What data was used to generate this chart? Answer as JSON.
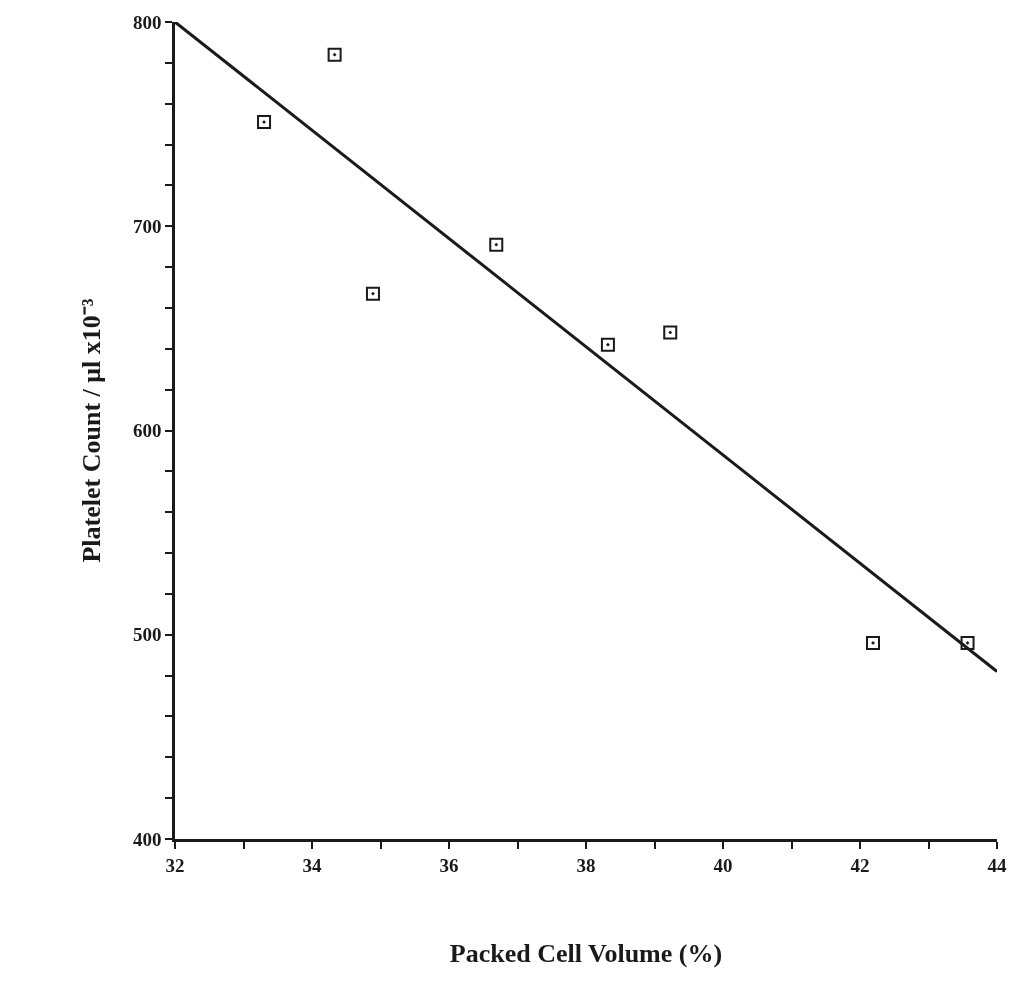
{
  "chart_data": {
    "type": "scatter",
    "xlabel": "Packed Cell Volume (%)",
    "ylabel": "Platelet Count / μl x10⁻³",
    "x": [
      33.3,
      34.33,
      34.89,
      36.69,
      38.32,
      39.23,
      42.19,
      43.57
    ],
    "series": [
      {
        "color": "#1a1a1a",
        "values": [
          751,
          784,
          667,
          691,
          642,
          648,
          496,
          496
        ],
        "marker": "square"
      },
      {
        "type": "line",
        "color": "#1a1a1a",
        "x": [
          32,
          44
        ],
        "values": [
          800,
          482
        ],
        "marker": "none",
        "line_style": "solid"
      }
    ],
    "xlim": [
      32,
      44
    ],
    "xticks": [
      32,
      {
        "value": 33,
        "label": null
      },
      34,
      {
        "value": 35,
        "label": null
      },
      36,
      {
        "value": 37,
        "label": null
      },
      38,
      {
        "value": 39,
        "label": null
      },
      40,
      {
        "value": 41,
        "label": null
      },
      42,
      {
        "value": 43,
        "label": null
      },
      44
    ],
    "ylim": [
      400,
      800
    ],
    "yticks": [
      400,
      {
        "value": 420,
        "label": null
      },
      {
        "value": 440,
        "label": null
      },
      {
        "value": 460,
        "label": null
      },
      {
        "value": 480,
        "label": null
      },
      500,
      {
        "value": 520,
        "label": null
      },
      {
        "value": 540,
        "label": null
      },
      {
        "value": 560,
        "label": null
      },
      {
        "value": 580,
        "label": null
      },
      600,
      {
        "value": 620,
        "label": null
      },
      {
        "value": 640,
        "label": null
      },
      {
        "value": 660,
        "label": null
      },
      {
        "value": 680,
        "label": null
      },
      700,
      {
        "value": 720,
        "label": null
      },
      {
        "value": 740,
        "label": null
      },
      {
        "value": 760,
        "label": null
      },
      {
        "value": 780,
        "label": null
      },
      800
    ],
    "grid": false
  }
}
